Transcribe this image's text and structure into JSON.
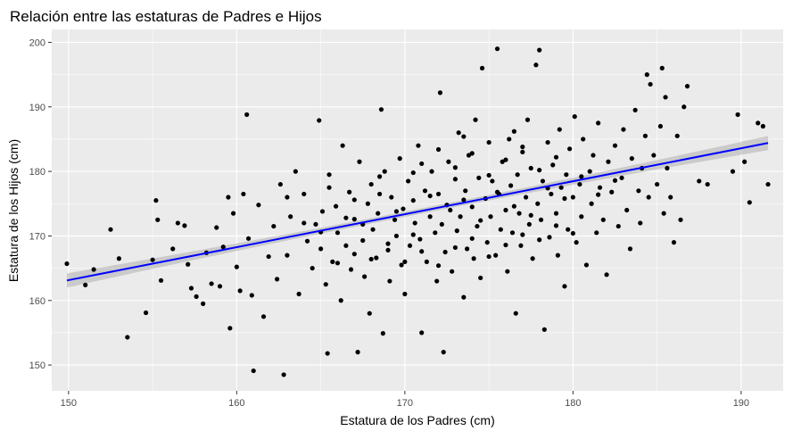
{
  "chart_data": {
    "type": "scatter",
    "title": "Relación entre las estaturas de Padres e Hijos",
    "xlabel": "Estatura de los Padres (cm)",
    "ylabel": "Estatura de los Hijos (cm)",
    "xlim": [
      149.0,
      192.5
    ],
    "ylim": [
      146.0,
      202.0
    ],
    "x_ticks": [
      150,
      160,
      170,
      180,
      190
    ],
    "y_ticks": [
      150,
      160,
      170,
      180,
      190,
      200
    ],
    "x_tick_labels": [
      "150",
      "160",
      "170",
      "180",
      "190"
    ],
    "y_tick_labels": [
      "150",
      "160",
      "170",
      "180",
      "190",
      "200"
    ],
    "grid": true,
    "trend_line": {
      "method": "linear",
      "x_start": 149.9,
      "y_start": 163.1,
      "x_end": 191.6,
      "y_end": 184.4,
      "band_half_width_min": 0.4,
      "band_half_width_max": 1.1
    },
    "colors": {
      "panel": "#EBEBEB",
      "grid": "#FFFFFF",
      "points": "#000000",
      "line": "#0000FF",
      "band": "#999999"
    },
    "points": [
      [
        149.9,
        165.7
      ],
      [
        151.0,
        162.4
      ],
      [
        151.5,
        164.8
      ],
      [
        152.5,
        171.0
      ],
      [
        153.0,
        166.5
      ],
      [
        153.5,
        154.3
      ],
      [
        154.6,
        158.1
      ],
      [
        155.0,
        166.3
      ],
      [
        155.2,
        175.5
      ],
      [
        155.3,
        172.5
      ],
      [
        155.5,
        163.1
      ],
      [
        156.2,
        168.0
      ],
      [
        156.5,
        172.0
      ],
      [
        156.9,
        171.6
      ],
      [
        157.1,
        165.6
      ],
      [
        157.3,
        161.9
      ],
      [
        157.6,
        160.6
      ],
      [
        158.0,
        159.5
      ],
      [
        158.2,
        167.4
      ],
      [
        158.5,
        162.6
      ],
      [
        158.8,
        171.3
      ],
      [
        159.0,
        162.2
      ],
      [
        159.2,
        168.3
      ],
      [
        159.5,
        176.0
      ],
      [
        159.6,
        155.7
      ],
      [
        159.8,
        173.5
      ],
      [
        160.0,
        165.2
      ],
      [
        160.2,
        161.5
      ],
      [
        160.4,
        176.5
      ],
      [
        160.6,
        188.8
      ],
      [
        160.7,
        169.6
      ],
      [
        160.9,
        160.8
      ],
      [
        161.0,
        149.1
      ],
      [
        161.3,
        174.8
      ],
      [
        161.6,
        157.5
      ],
      [
        161.9,
        166.8
      ],
      [
        162.2,
        171.5
      ],
      [
        162.4,
        163.3
      ],
      [
        162.6,
        178.0
      ],
      [
        162.8,
        148.5
      ],
      [
        163.0,
        167.0
      ],
      [
        163.2,
        173.0
      ],
      [
        163.5,
        180.0
      ],
      [
        163.7,
        161.0
      ],
      [
        164.0,
        176.5
      ],
      [
        164.2,
        169.2
      ],
      [
        164.5,
        165.0
      ],
      [
        164.7,
        171.8
      ],
      [
        164.9,
        187.9
      ],
      [
        165.0,
        168.0
      ],
      [
        165.1,
        173.8
      ],
      [
        165.3,
        162.5
      ],
      [
        165.4,
        151.8
      ],
      [
        165.5,
        179.5
      ],
      [
        165.7,
        166.0
      ],
      [
        165.9,
        174.6
      ],
      [
        166.0,
        170.5
      ],
      [
        166.2,
        160.0
      ],
      [
        166.3,
        184.0
      ],
      [
        166.5,
        168.5
      ],
      [
        166.7,
        176.8
      ],
      [
        166.8,
        164.8
      ],
      [
        167.0,
        172.6
      ],
      [
        167.2,
        152.0
      ],
      [
        167.3,
        181.5
      ],
      [
        167.5,
        169.3
      ],
      [
        167.6,
        163.7
      ],
      [
        167.8,
        175.0
      ],
      [
        167.9,
        158.0
      ],
      [
        168.0,
        178.0
      ],
      [
        168.1,
        171.0
      ],
      [
        168.3,
        166.6
      ],
      [
        168.4,
        173.5
      ],
      [
        168.6,
        189.6
      ],
      [
        168.7,
        154.9
      ],
      [
        168.8,
        180.0
      ],
      [
        169.0,
        167.8
      ],
      [
        169.1,
        163.0
      ],
      [
        169.2,
        176.0
      ],
      [
        169.4,
        172.5
      ],
      [
        169.5,
        170.0
      ],
      [
        169.7,
        182.0
      ],
      [
        169.8,
        165.5
      ],
      [
        169.9,
        174.2
      ],
      [
        170.0,
        161.0
      ],
      [
        170.2,
        178.5
      ],
      [
        170.3,
        168.5
      ],
      [
        170.5,
        175.5
      ],
      [
        170.6,
        172.0
      ],
      [
        170.8,
        184.0
      ],
      [
        170.9,
        169.5
      ],
      [
        171.0,
        155.0
      ],
      [
        171.2,
        177.0
      ],
      [
        171.3,
        166.0
      ],
      [
        171.5,
        173.0
      ],
      [
        171.6,
        180.0
      ],
      [
        171.8,
        170.5
      ],
      [
        171.9,
        163.0
      ],
      [
        172.0,
        176.5
      ],
      [
        172.1,
        192.2
      ],
      [
        172.2,
        171.8
      ],
      [
        172.3,
        152.0
      ],
      [
        172.4,
        167.5
      ],
      [
        172.6,
        181.5
      ],
      [
        172.7,
        174.0
      ],
      [
        172.8,
        164.5
      ],
      [
        173.0,
        178.8
      ],
      [
        173.1,
        170.8
      ],
      [
        173.2,
        186.0
      ],
      [
        173.3,
        173.0
      ],
      [
        173.5,
        160.5
      ],
      [
        173.6,
        177.0
      ],
      [
        173.7,
        168.0
      ],
      [
        173.8,
        182.5
      ],
      [
        174.0,
        174.5
      ],
      [
        174.1,
        166.5
      ],
      [
        174.2,
        188.0
      ],
      [
        174.3,
        171.5
      ],
      [
        174.4,
        179.0
      ],
      [
        174.5,
        163.5
      ],
      [
        174.6,
        196.0
      ],
      [
        174.8,
        175.8
      ],
      [
        174.9,
        169.0
      ],
      [
        175.0,
        184.5
      ],
      [
        175.1,
        173.0
      ],
      [
        175.2,
        178.5
      ],
      [
        175.4,
        167.0
      ],
      [
        175.5,
        199.0
      ],
      [
        175.6,
        176.5
      ],
      [
        175.7,
        171.0
      ],
      [
        175.8,
        181.5
      ],
      [
        176.0,
        174.0
      ],
      [
        176.1,
        164.5
      ],
      [
        176.2,
        185.0
      ],
      [
        176.3,
        177.8
      ],
      [
        176.4,
        170.5
      ],
      [
        176.6,
        158.0
      ],
      [
        176.7,
        179.5
      ],
      [
        176.8,
        173.5
      ],
      [
        176.9,
        168.5
      ],
      [
        177.0,
        183.0
      ],
      [
        177.2,
        176.0
      ],
      [
        177.3,
        188.0
      ],
      [
        177.4,
        171.8
      ],
      [
        177.5,
        180.5
      ],
      [
        177.6,
        166.5
      ],
      [
        177.8,
        196.5
      ],
      [
        177.9,
        175.0
      ],
      [
        178.0,
        198.8
      ],
      [
        178.1,
        172.5
      ],
      [
        178.2,
        178.5
      ],
      [
        178.3,
        155.5
      ],
      [
        178.5,
        184.5
      ],
      [
        178.6,
        169.8
      ],
      [
        178.7,
        176.5
      ],
      [
        178.8,
        181.0
      ],
      [
        179.0,
        173.5
      ],
      [
        179.1,
        167.0
      ],
      [
        179.2,
        186.5
      ],
      [
        179.3,
        177.5
      ],
      [
        179.5,
        162.2
      ],
      [
        179.6,
        179.5
      ],
      [
        179.7,
        171.0
      ],
      [
        179.8,
        183.5
      ],
      [
        180.0,
        176.0
      ],
      [
        180.1,
        188.5
      ],
      [
        180.2,
        169.0
      ],
      [
        180.4,
        178.0
      ],
      [
        180.5,
        173.0
      ],
      [
        180.6,
        185.0
      ],
      [
        180.8,
        165.5
      ],
      [
        181.0,
        180.0
      ],
      [
        181.1,
        175.0
      ],
      [
        181.2,
        182.5
      ],
      [
        181.4,
        170.5
      ],
      [
        181.5,
        187.5
      ],
      [
        181.6,
        177.5
      ],
      [
        181.8,
        172.5
      ],
      [
        182.0,
        164.0
      ],
      [
        182.1,
        181.5
      ],
      [
        182.3,
        176.8
      ],
      [
        182.5,
        184.0
      ],
      [
        182.7,
        171.5
      ],
      [
        182.9,
        179.0
      ],
      [
        183.0,
        186.5
      ],
      [
        183.2,
        174.0
      ],
      [
        183.4,
        168.0
      ],
      [
        183.5,
        182.0
      ],
      [
        183.7,
        189.5
      ],
      [
        183.9,
        177.0
      ],
      [
        184.0,
        172.0
      ],
      [
        184.1,
        180.5
      ],
      [
        184.3,
        185.5
      ],
      [
        184.4,
        195.0
      ],
      [
        184.5,
        176.0
      ],
      [
        184.6,
        193.5
      ],
      [
        184.8,
        182.5
      ],
      [
        185.0,
        178.0
      ],
      [
        185.2,
        187.0
      ],
      [
        185.3,
        196.0
      ],
      [
        185.4,
        173.5
      ],
      [
        185.5,
        191.5
      ],
      [
        185.6,
        180.5
      ],
      [
        185.8,
        176.0
      ],
      [
        186.0,
        169.0
      ],
      [
        186.2,
        185.5
      ],
      [
        186.4,
        172.5
      ],
      [
        186.6,
        190.0
      ],
      [
        186.8,
        193.2
      ],
      [
        187.5,
        178.5
      ],
      [
        188.0,
        178.0
      ],
      [
        189.5,
        180.0
      ],
      [
        189.8,
        188.8
      ],
      [
        190.2,
        181.5
      ],
      [
        190.5,
        175.2
      ],
      [
        191.0,
        187.5
      ],
      [
        191.3,
        187.0
      ],
      [
        191.6,
        178.0
      ],
      [
        163.0,
        176.0
      ],
      [
        164.0,
        172.0
      ],
      [
        165.5,
        177.5
      ],
      [
        166.5,
        172.8
      ],
      [
        167.5,
        171.8
      ],
      [
        168.5,
        176.5
      ],
      [
        169.5,
        173.8
      ],
      [
        170.5,
        170.2
      ],
      [
        171.5,
        176.2
      ],
      [
        172.5,
        174.8
      ],
      [
        173.5,
        175.6
      ],
      [
        174.5,
        172.4
      ],
      [
        175.5,
        176.8
      ],
      [
        176.5,
        174.6
      ],
      [
        177.5,
        173.2
      ],
      [
        178.5,
        177.4
      ],
      [
        179.5,
        175.8
      ],
      [
        180.5,
        179.2
      ],
      [
        181.5,
        176.4
      ],
      [
        182.5,
        178.6
      ],
      [
        166.0,
        165.8
      ],
      [
        167.0,
        167.2
      ],
      [
        168.0,
        166.4
      ],
      [
        169.0,
        168.8
      ],
      [
        170.0,
        166.0
      ],
      [
        171.0,
        167.6
      ],
      [
        172.0,
        165.4
      ],
      [
        173.0,
        168.2
      ],
      [
        174.0,
        169.6
      ],
      [
        175.0,
        166.8
      ],
      [
        176.0,
        168.6
      ],
      [
        177.0,
        170.2
      ],
      [
        178.0,
        169.4
      ],
      [
        179.0,
        171.6
      ],
      [
        180.0,
        170.4
      ],
      [
        171.0,
        181.2
      ],
      [
        172.0,
        183.4
      ],
      [
        173.0,
        180.6
      ],
      [
        174.0,
        182.8
      ],
      [
        175.0,
        179.4
      ],
      [
        176.0,
        181.8
      ],
      [
        177.0,
        183.8
      ],
      [
        178.0,
        180.2
      ],
      [
        179.0,
        182.2
      ],
      [
        176.5,
        186.2
      ],
      [
        173.5,
        185.4
      ],
      [
        170.5,
        179.8
      ],
      [
        168.5,
        179.2
      ],
      [
        167.0,
        175.6
      ],
      [
        165.0,
        170.6
      ]
    ]
  }
}
